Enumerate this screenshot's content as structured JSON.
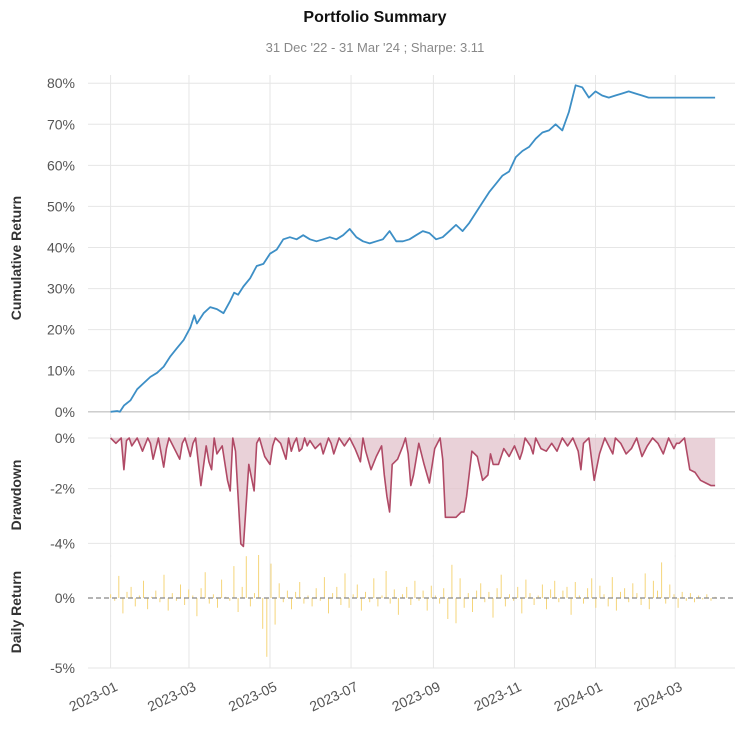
{
  "chart_data": [
    {
      "type": "line",
      "panel": "cumulative",
      "title": "Portfolio Summary",
      "subtitle": "31 Dec '22 - 31 Mar '24 ;  Sharpe: 3.11",
      "ylabel": "Cumulative Return",
      "ylim": [
        -0.02,
        0.82
      ],
      "yticks": [
        0,
        10,
        20,
        30,
        40,
        50,
        60,
        70,
        80
      ],
      "ytick_labels": [
        "0%",
        "10%",
        "20%",
        "30%",
        "40%",
        "50%",
        "60%",
        "70%",
        "80%"
      ],
      "color": "#3d8fc6",
      "x": [
        0,
        5,
        7,
        10,
        15,
        20,
        25,
        30,
        35,
        40,
        45,
        50,
        55,
        60,
        63,
        65,
        70,
        75,
        80,
        85,
        90,
        93,
        96,
        100,
        105,
        110,
        115,
        120,
        125,
        130,
        135,
        140,
        145,
        150,
        155,
        160,
        165,
        170,
        175,
        180,
        185,
        190,
        195,
        200,
        205,
        210,
        215,
        220,
        225,
        230,
        235,
        240,
        245,
        250,
        255,
        260,
        265,
        270,
        275,
        280,
        285,
        290,
        295,
        300,
        305,
        310,
        315,
        320,
        325,
        330,
        335,
        340,
        345,
        350,
        355,
        360,
        365,
        370,
        375,
        380,
        385,
        390,
        395,
        400,
        405,
        410,
        415,
        420,
        425,
        430,
        435,
        440,
        445,
        450,
        455
      ],
      "values": [
        0.0,
        0.2,
        0.0,
        1.5,
        2.8,
        5.5,
        7.0,
        8.5,
        9.5,
        11.0,
        13.5,
        15.5,
        17.5,
        20.5,
        23.5,
        21.5,
        24.0,
        25.5,
        25.0,
        24.0,
        27.0,
        29.0,
        28.5,
        30.5,
        32.5,
        35.5,
        36.0,
        38.5,
        39.5,
        42.0,
        42.5,
        42.0,
        43.0,
        42.0,
        41.5,
        42.0,
        42.5,
        42.0,
        43.0,
        44.5,
        42.5,
        41.5,
        41.0,
        41.5,
        42.0,
        44.0,
        41.5,
        41.5,
        42.0,
        43.0,
        44.0,
        43.5,
        42.0,
        42.5,
        44.0,
        45.5,
        44.0,
        46.0,
        48.5,
        51.0,
        53.5,
        55.5,
        57.5,
        58.5,
        62.0,
        63.5,
        64.5,
        66.5,
        68.0,
        68.5,
        70.0,
        68.5,
        73.0,
        79.5,
        79.0,
        76.5,
        78.0,
        77.0,
        76.5,
        77.0,
        77.5,
        78.0,
        77.5,
        77.0,
        76.5,
        76.5,
        76.5,
        76.5,
        76.5,
        76.5,
        76.5,
        76.5,
        76.5,
        76.5,
        76.5
      ]
    },
    {
      "type": "area",
      "panel": "drawdown",
      "ylabel": "Drawdown",
      "ylim": [
        -4.5,
        0.0
      ],
      "yticks": [
        0,
        -2,
        -4
      ],
      "ytick_labels": [
        "0%",
        "-2%",
        "-4%"
      ],
      "color": "#b04a66",
      "fill": "#e2c2cb",
      "x": [
        0,
        4,
        8,
        10,
        12,
        14,
        16,
        20,
        24,
        28,
        30,
        32,
        36,
        40,
        42,
        44,
        48,
        52,
        54,
        56,
        60,
        62,
        64,
        68,
        72,
        74,
        76,
        78,
        80,
        84,
        88,
        90,
        92,
        94,
        98,
        100,
        104,
        108,
        110,
        112,
        116,
        120,
        122,
        124,
        128,
        132,
        134,
        136,
        138,
        140,
        142,
        144,
        146,
        148,
        150,
        154,
        158,
        160,
        164,
        166,
        168,
        172,
        176,
        180,
        184,
        188,
        190,
        192,
        196,
        200,
        204,
        206,
        208,
        210,
        212,
        216,
        220,
        222,
        224,
        226,
        228,
        232,
        236,
        240,
        244,
        248,
        250,
        252,
        256,
        260,
        264,
        266,
        268,
        272,
        276,
        280,
        284,
        286,
        288,
        292,
        296,
        300,
        304,
        308,
        310,
        312,
        316,
        318,
        320,
        324,
        328,
        332,
        336,
        340,
        344,
        348,
        352,
        354,
        356,
        360,
        364,
        368,
        372,
        376,
        378,
        380,
        384,
        388,
        392,
        396,
        400,
        404,
        408,
        412,
        416,
        420,
        424,
        426,
        428,
        432,
        436,
        440,
        444,
        448,
        452,
        455
      ],
      "values": [
        0.0,
        -0.2,
        0.0,
        -1.2,
        -0.1,
        0.0,
        -0.3,
        0.0,
        -0.5,
        0.0,
        -0.2,
        -0.8,
        0.0,
        -1.1,
        -0.4,
        0.0,
        -0.4,
        -0.8,
        -0.2,
        0.0,
        -0.7,
        -0.2,
        0.0,
        -1.8,
        -0.3,
        -0.9,
        -1.2,
        0.0,
        -0.6,
        -0.3,
        -1.6,
        -2.0,
        0.0,
        -0.5,
        -4.0,
        -4.1,
        -1.0,
        -2.0,
        -0.2,
        0.0,
        -0.7,
        -1.0,
        -0.3,
        0.0,
        -0.2,
        -0.8,
        0.0,
        -0.5,
        -0.2,
        0.0,
        -0.5,
        -0.4,
        0.0,
        -0.3,
        -0.1,
        -0.4,
        -0.2,
        -0.6,
        0.0,
        -0.2,
        -0.6,
        0.0,
        -0.3,
        0.0,
        -0.4,
        -0.9,
        0.0,
        -0.5,
        -1.2,
        -0.7,
        -0.3,
        -1.4,
        -2.2,
        -2.8,
        -1.0,
        -0.8,
        -0.3,
        0.0,
        -0.6,
        -1.8,
        -1.4,
        -0.2,
        -1.0,
        -1.7,
        -0.4,
        0.0,
        -0.8,
        -3.0,
        -3.0,
        -3.0,
        -2.8,
        -2.8,
        -2.2,
        -0.5,
        -0.7,
        -1.6,
        -1.4,
        -0.6,
        -1.0,
        -1.0,
        -0.4,
        -0.7,
        -0.3,
        -0.8,
        -0.5,
        0.0,
        -0.3,
        -0.6,
        0.0,
        -0.4,
        -0.5,
        -0.2,
        -0.5,
        0.0,
        -0.3,
        0.0,
        -0.5,
        -1.2,
        -0.2,
        0.0,
        -1.6,
        -0.6,
        0.0,
        -0.4,
        -0.6,
        0.0,
        -0.2,
        -0.6,
        -0.4,
        0.0,
        -0.7,
        -0.3,
        0.0,
        -0.2,
        -0.6,
        0.0,
        -0.4,
        -0.2,
        -0.2,
        0.0,
        -1.2,
        -1.3,
        -1.6,
        -1.7,
        -1.8,
        -1.8
      ]
    },
    {
      "type": "bar",
      "panel": "daily_return",
      "ylabel": "Daily Return",
      "ylim": [
        -5.0,
        3.5
      ],
      "yticks": [
        0,
        -5
      ],
      "ytick_labels": [
        "0%",
        "-5%"
      ],
      "color": "#f5d57a",
      "zero_line": "dashed",
      "values": [
        0.3,
        -0.2,
        1.8,
        -1.1,
        0.5,
        0.9,
        -0.6,
        0.2,
        1.4,
        -0.8,
        0.1,
        0.6,
        -0.3,
        1.9,
        -0.9,
        0.4,
        -0.2,
        1.1,
        -0.5,
        0.7,
        0.2,
        -1.3,
        0.8,
        2.1,
        -0.4,
        0.3,
        -0.7,
        1.5,
        0.1,
        -0.2,
        2.6,
        -1.0,
        0.9,
        3.4,
        -0.6,
        0.4,
        3.5,
        -2.2,
        -4.2,
        2.8,
        -1.9,
        1.2,
        -0.3,
        0.6,
        -0.8,
        0.5,
        1.3,
        -0.4,
        0.2,
        -0.6,
        0.8,
        -0.2,
        1.7,
        -1.1,
        0.4,
        0.9,
        -0.5,
        2.0,
        -0.7,
        0.3,
        1.1,
        -0.9,
        0.5,
        -0.3,
        1.6,
        -0.6,
        0.2,
        2.2,
        -0.4,
        0.7,
        -1.2,
        0.3,
        0.9,
        -0.5,
        1.4,
        -0.2,
        0.6,
        -0.9,
        1.0,
        0.2,
        -0.4,
        0.8,
        -1.5,
        2.7,
        -1.8,
        1.6,
        -0.7,
        0.4,
        -1.0,
        0.6,
        1.2,
        -0.3,
        0.5,
        -1.4,
        0.8,
        1.9,
        -0.6,
        0.3,
        -0.2,
        0.9,
        -1.1,
        1.5,
        0.4,
        -0.5,
        0.2,
        1.1,
        -0.8,
        0.7,
        1.4,
        -0.3,
        0.6,
        0.9,
        -1.2,
        1.3,
        0.2,
        -0.4,
        0.8,
        1.6,
        -0.7,
        1.0,
        0.3,
        -0.6,
        1.7,
        -0.9,
        0.5,
        0.8,
        -0.3,
        1.2,
        0.4,
        -0.5,
        2.0,
        -0.8,
        1.4,
        0.6,
        2.9,
        -0.4,
        1.1,
        0.3,
        -0.7,
        0.5,
        -0.2,
        0.4,
        -0.3,
        0.2,
        -0.1,
        0.3,
        -0.2,
        0.1
      ]
    }
  ],
  "x_axis": {
    "tick_labels": [
      "2023-01",
      "2023-03",
      "2023-05",
      "2023-07",
      "2023-09",
      "2023-11",
      "2024-01",
      "2024-03"
    ],
    "tick_days": [
      0,
      59,
      120,
      181,
      243,
      304,
      365,
      425
    ],
    "domain_days": [
      -17,
      470
    ]
  }
}
